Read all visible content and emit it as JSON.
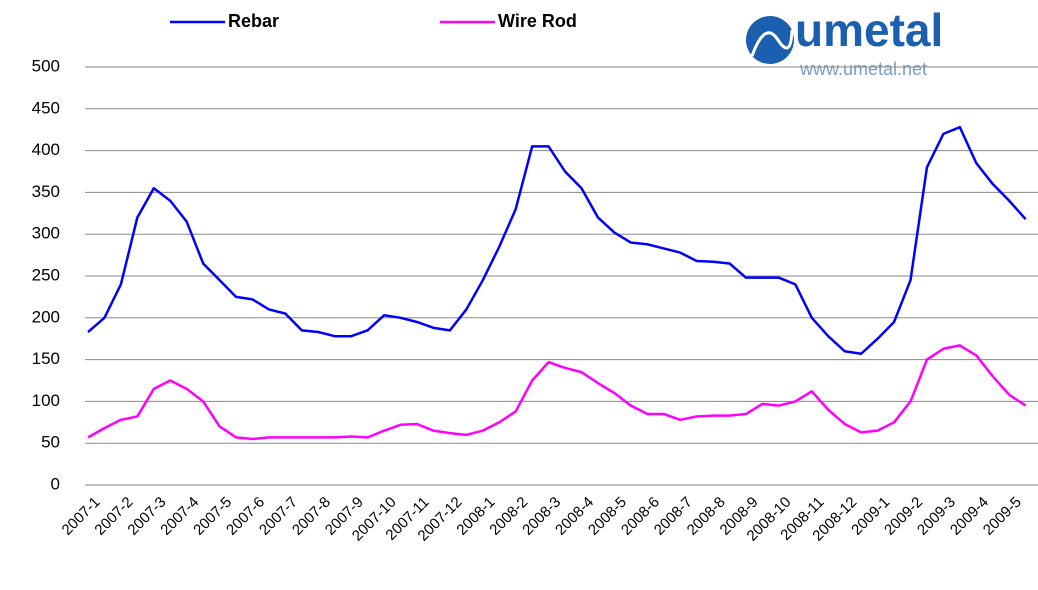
{
  "chart_data": {
    "type": "line",
    "categories": [
      "2007-1",
      null,
      "2007-2",
      null,
      "2007-3",
      null,
      "2007-4",
      null,
      "2007-5",
      null,
      "2007-6",
      null,
      "2007-7",
      null,
      "2007-8",
      null,
      "2007-9",
      null,
      "2007-10",
      null,
      "2007-11",
      null,
      "2007-12",
      null,
      "2008-1",
      null,
      "2008-2",
      null,
      "2008-3",
      null,
      "2008-4",
      null,
      "2008-5",
      null,
      "2008-6",
      null,
      "2008-7",
      null,
      "2008-8",
      null,
      "2008-9",
      null,
      "2008-10",
      null,
      "2008-11",
      null,
      "2008-12",
      null,
      "2009-1",
      null,
      "2009-2",
      null,
      "2009-3",
      null,
      "2009-4",
      null,
      "2009-5",
      null
    ],
    "series": [
      {
        "name": "Rebar",
        "color": "#0000ff",
        "values": [
          183,
          200,
          240,
          320,
          355,
          340,
          315,
          265,
          245,
          225,
          222,
          210,
          205,
          185,
          183,
          178,
          178,
          185,
          203,
          200,
          195,
          188,
          185,
          210,
          245,
          285,
          330,
          405,
          405,
          375,
          355,
          320,
          302,
          290,
          288,
          283,
          278,
          268,
          267,
          265,
          248,
          248,
          248,
          240,
          200,
          178,
          160,
          157,
          175,
          195,
          245,
          380,
          420,
          428,
          385,
          360,
          340,
          318
        ]
      },
      {
        "name": "Wire Rod",
        "color": "#ff00ff",
        "values": [
          57,
          68,
          78,
          82,
          115,
          125,
          115,
          100,
          70,
          57,
          55,
          57,
          57,
          57,
          57,
          57,
          58,
          57,
          65,
          72,
          73,
          65,
          62,
          60,
          65,
          75,
          88,
          125,
          147,
          140,
          135,
          122,
          110,
          95,
          85,
          85,
          78,
          82,
          83,
          83,
          85,
          97,
          95,
          100,
          112,
          90,
          73,
          63,
          65,
          75,
          100,
          150,
          163,
          167,
          155,
          130,
          108,
          95
        ]
      }
    ],
    "ylim": [
      0,
      500
    ],
    "yticks": [
      0,
      50,
      100,
      150,
      200,
      250,
      300,
      350,
      400,
      450,
      500
    ],
    "grid": true
  },
  "logo": {
    "name": "umetal",
    "url": "www.umetal.net"
  }
}
